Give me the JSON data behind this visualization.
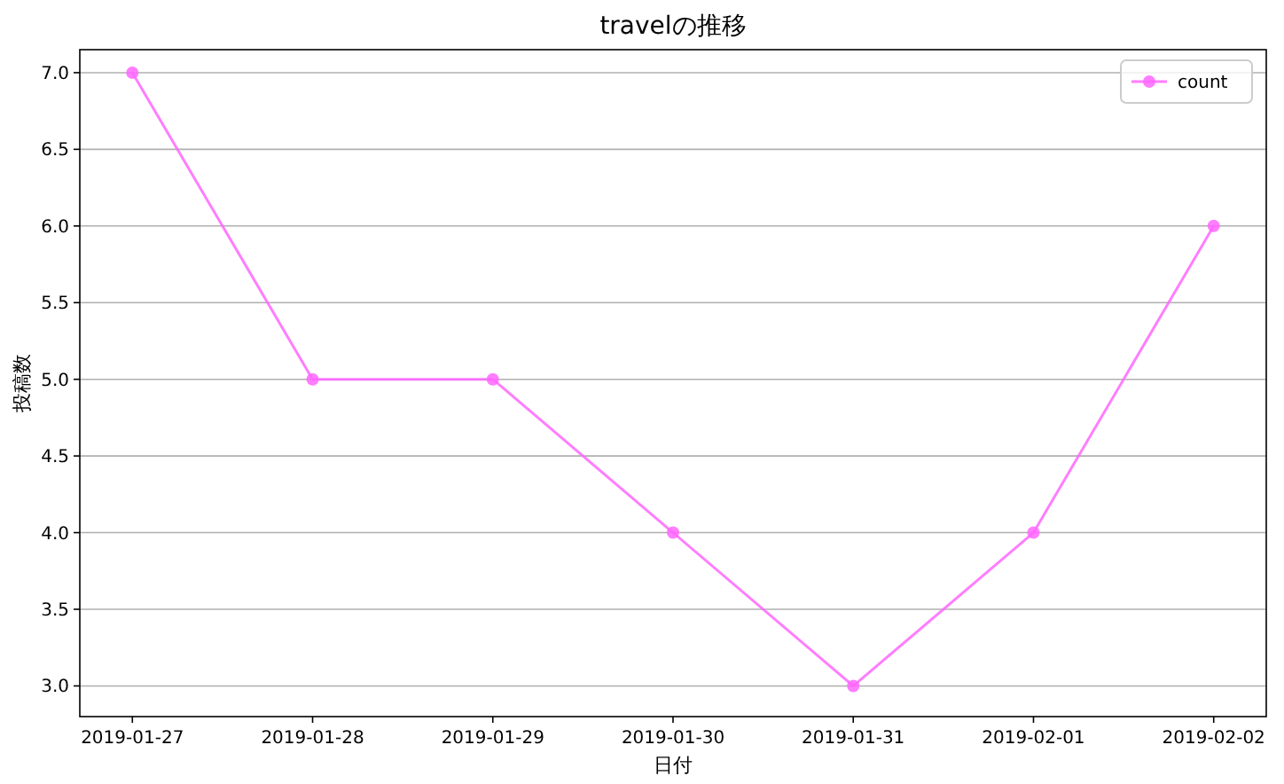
{
  "chart_data": {
    "type": "line",
    "title": "travelの推移",
    "xlabel": "日付",
    "ylabel": "投稿数",
    "x": [
      "2019-01-27",
      "2019-01-28",
      "2019-01-29",
      "2019-01-30",
      "2019-01-31",
      "2019-02-01",
      "2019-02-02"
    ],
    "series": [
      {
        "name": "count",
        "color": "#ff66ff",
        "values": [
          7,
          5,
          5,
          4,
          3,
          4,
          6
        ]
      }
    ],
    "xlim": [
      "2019-01-26T17:00",
      "2019-02-02T07:00"
    ],
    "xticks": [
      "2019-01-27",
      "2019-01-28",
      "2019-01-29",
      "2019-01-30",
      "2019-01-31",
      "2019-02-01",
      "2019-02-02"
    ],
    "ylim": [
      2.8,
      7.15
    ],
    "yticks": [
      {
        "value": 3,
        "label": "3.0"
      },
      {
        "value": 3.5,
        "label": "3.5"
      },
      {
        "value": 4,
        "label": "4.0"
      },
      {
        "value": 4.5,
        "label": "4.5"
      },
      {
        "value": 5,
        "label": "5.0"
      },
      {
        "value": 5.5,
        "label": "5.5"
      },
      {
        "value": 6,
        "label": "6.0"
      },
      {
        "value": 6.5,
        "label": "6.5"
      },
      {
        "value": 7,
        "label": "7.0"
      }
    ],
    "grid": "y",
    "legend": "top right",
    "marker": "circle",
    "line_style": "solid"
  }
}
